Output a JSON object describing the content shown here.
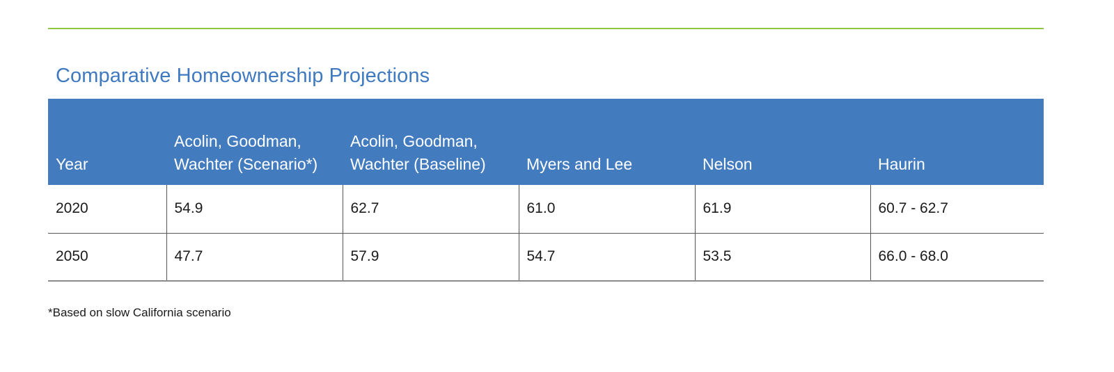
{
  "title": "Comparative Homeownership Projections",
  "accent_color": "#3f7ac0",
  "rule_color": "#8dc63f",
  "header_bg_color": "#437bbf",
  "table": {
    "headers": [
      "Year",
      "Acolin, Goodman, Wachter (Scenario*)",
      "Acolin, Goodman, Wachter (Baseline)",
      "Myers and Lee",
      "Nelson",
      "Haurin"
    ],
    "rows": [
      [
        "2020",
        "54.9",
        "62.7",
        "61.0",
        "61.9",
        "60.7 - 62.7"
      ],
      [
        "2050",
        "47.7",
        "57.9",
        "54.7",
        "53.5",
        "66.0 - 68.0"
      ]
    ]
  },
  "footnote": "*Based on slow California scenario"
}
